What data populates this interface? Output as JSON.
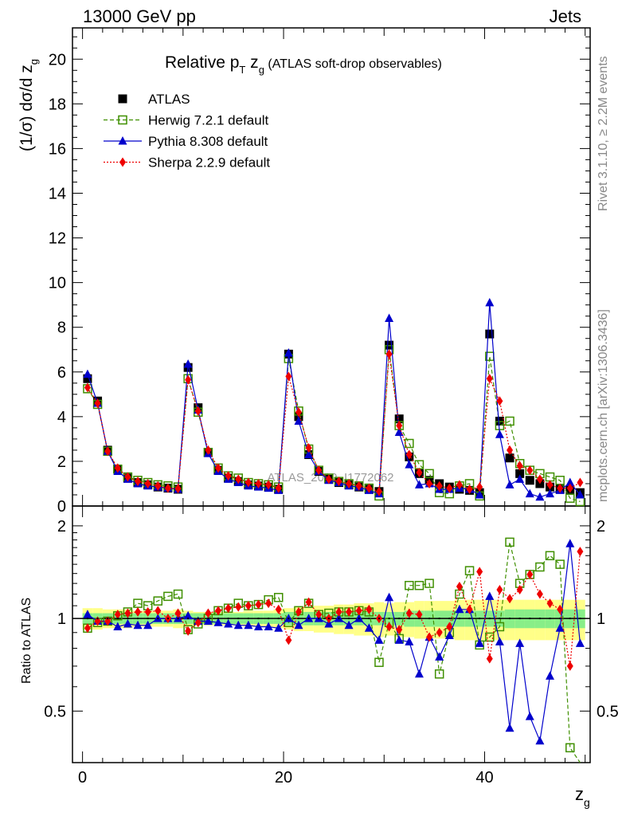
{
  "header": {
    "left": "13000 GeV pp",
    "right": "Jets"
  },
  "title": {
    "main": "Relative p",
    "sub_T": "T",
    "z": " z",
    "sub_g": "g",
    "tail": " (ATLAS soft-drop observables)"
  },
  "yaxis": {
    "main_prefix": "(1/σ) dσ/d z",
    "main_sub": "g",
    "ratio_label": "Ratio to ATLAS"
  },
  "xaxis": {
    "label": "z",
    "label_sub": "g"
  },
  "side_text": {
    "rivet": "Rivet 3.1.10, ≥ 2.2M events",
    "mcplots": "mcplots.cern.ch [arXiv:1306.3436]"
  },
  "watermark": "ATLAS_2019_I1772062",
  "legend": [
    {
      "label": "ATLAS",
      "color": "#000000",
      "marker": "square-filled"
    },
    {
      "label": "Herwig 7.2.1 default",
      "color": "#3f8f00",
      "marker": "square-open"
    },
    {
      "label": "Pythia 8.308 default",
      "color": "#0000cc",
      "marker": "triangle"
    },
    {
      "label": "Sherpa 2.2.9 default",
      "color": "#ee0000",
      "marker": "diamond"
    }
  ],
  "chart_data": {
    "type": "scatter",
    "x": [
      0.5,
      1.5,
      2.5,
      3.5,
      4.5,
      5.5,
      6.5,
      7.5,
      8.5,
      9.5,
      10.5,
      11.5,
      12.5,
      13.5,
      14.5,
      15.5,
      16.5,
      17.5,
      18.5,
      19.5,
      20.5,
      21.5,
      22.5,
      23.5,
      24.5,
      25.5,
      26.5,
      27.5,
      28.5,
      29.5,
      30.5,
      31.5,
      32.5,
      33.5,
      34.5,
      35.5,
      36.5,
      37.5,
      38.5,
      39.5,
      40.5,
      41.5,
      42.5,
      43.5,
      44.5,
      45.5,
      46.5,
      47.5,
      48.5,
      49.5
    ],
    "xlim": [
      -1,
      50.5
    ],
    "main_ylim": [
      0,
      21.4
    ],
    "main_yticks": [
      0,
      2,
      4,
      6,
      8,
      10,
      12,
      14,
      16,
      18,
      20
    ],
    "ratio_ylim": [
      0.34,
      2.32
    ],
    "ratio_yticks": [
      0.5,
      1,
      2
    ],
    "xticks": [
      0,
      20,
      40
    ],
    "series": [
      {
        "name": "ATLAS",
        "values": [
          5.7,
          4.7,
          2.5,
          1.65,
          1.25,
          1.05,
          0.95,
          0.85,
          0.8,
          0.75,
          6.2,
          4.4,
          2.4,
          1.6,
          1.25,
          1.1,
          0.95,
          0.9,
          0.85,
          0.75,
          6.8,
          4.0,
          2.3,
          1.55,
          1.2,
          1.05,
          0.95,
          0.85,
          0.75,
          0.65,
          7.2,
          3.9,
          2.2,
          1.45,
          1.15,
          1.0,
          0.85,
          0.75,
          0.7,
          0.6,
          7.7,
          3.8,
          2.15,
          1.45,
          1.15,
          1.0,
          0.85,
          0.75,
          0.7,
          0.6
        ]
      },
      {
        "name": "Herwig 7.2.1 default",
        "values": [
          5.25,
          4.55,
          2.45,
          1.65,
          1.3,
          1.15,
          1.05,
          0.95,
          0.9,
          0.85,
          5.7,
          4.2,
          2.4,
          1.7,
          1.35,
          1.25,
          1.05,
          1.0,
          0.95,
          0.85,
          6.6,
          4.25,
          2.55,
          1.6,
          1.25,
          1.1,
          1.0,
          0.9,
          0.8,
          0.45,
          7.0,
          3.6,
          2.8,
          1.85,
          1.45,
          0.6,
          0.55,
          0.9,
          1.0,
          0.45,
          6.7,
          3.6,
          3.8,
          1.9,
          1.6,
          1.45,
          1.3,
          1.15,
          0.35,
          0.2
        ]
      },
      {
        "name": "Pythia 8.308 default",
        "values": [
          5.9,
          4.6,
          2.45,
          1.55,
          1.2,
          1.0,
          0.9,
          0.85,
          0.8,
          0.75,
          6.35,
          4.3,
          2.35,
          1.55,
          1.2,
          1.05,
          0.9,
          0.85,
          0.8,
          0.7,
          6.85,
          3.8,
          2.3,
          1.55,
          1.15,
          1.05,
          0.9,
          0.85,
          0.7,
          0.55,
          8.4,
          3.3,
          1.85,
          0.95,
          1.0,
          0.75,
          0.75,
          0.8,
          0.75,
          0.5,
          9.1,
          3.2,
          0.95,
          1.2,
          0.55,
          0.4,
          0.55,
          0.7,
          1.05,
          0.5
        ]
      },
      {
        "name": "Sherpa 2.2.9 default",
        "values": [
          5.3,
          4.6,
          2.45,
          1.7,
          1.3,
          1.1,
          1.0,
          0.9,
          0.8,
          0.78,
          5.65,
          4.25,
          2.5,
          1.7,
          1.35,
          1.2,
          1.05,
          1.0,
          0.95,
          0.8,
          5.8,
          4.2,
          2.6,
          1.6,
          1.2,
          1.1,
          1.0,
          0.9,
          0.8,
          0.65,
          6.8,
          3.6,
          2.3,
          1.5,
          1.0,
          0.9,
          0.8,
          0.95,
          0.75,
          0.85,
          5.7,
          4.7,
          2.5,
          1.8,
          1.6,
          1.2,
          0.95,
          0.8,
          0.8,
          1.05
        ]
      }
    ],
    "ratios": [
      {
        "name": "Herwig 7.2.1 default",
        "values": [
          0.93,
          0.97,
          0.98,
          1.02,
          1.05,
          1.12,
          1.1,
          1.14,
          1.18,
          1.2,
          0.92,
          0.96,
          1.0,
          1.06,
          1.08,
          1.12,
          1.1,
          1.11,
          1.15,
          1.17,
          0.97,
          1.06,
          1.12,
          1.03,
          1.04,
          1.05,
          1.05,
          1.06,
          1.05,
          0.72,
          0.97,
          0.86,
          1.28,
          1.28,
          1.3,
          0.66,
          0.9,
          1.2,
          1.43,
          0.82,
          0.87,
          0.94,
          1.77,
          1.3,
          1.39,
          1.47,
          1.6,
          1.5,
          0.38,
          0.33
        ]
      },
      {
        "name": "Pythia 8.308 default",
        "values": [
          1.03,
          0.98,
          0.98,
          0.94,
          0.96,
          0.95,
          0.95,
          1.0,
          1.0,
          1.0,
          1.02,
          0.98,
          0.98,
          0.97,
          0.96,
          0.95,
          0.95,
          0.94,
          0.94,
          0.93,
          1.0,
          0.95,
          1.0,
          1.0,
          0.96,
          1.0,
          0.95,
          1.0,
          0.93,
          0.85,
          1.17,
          0.85,
          0.84,
          0.66,
          0.87,
          0.75,
          0.88,
          1.07,
          1.07,
          0.83,
          1.18,
          0.84,
          0.44,
          0.83,
          0.48,
          0.4,
          0.65,
          0.93,
          1.75,
          0.83
        ]
      },
      {
        "name": "Sherpa 2.2.9 default",
        "values": [
          0.93,
          0.98,
          0.98,
          1.03,
          1.04,
          1.05,
          1.05,
          1.06,
          1.0,
          1.04,
          0.91,
          0.97,
          1.04,
          1.06,
          1.08,
          1.09,
          1.1,
          1.11,
          1.12,
          1.07,
          0.85,
          1.05,
          1.13,
          1.03,
          1.0,
          1.05,
          1.05,
          1.06,
          1.07,
          1.0,
          0.94,
          0.92,
          1.04,
          1.03,
          0.87,
          0.9,
          0.94,
          1.27,
          1.07,
          1.42,
          0.74,
          1.24,
          1.16,
          1.24,
          1.39,
          1.2,
          1.12,
          1.07,
          0.7,
          1.65
        ]
      }
    ],
    "band_inner": [
      0.04,
      0.04,
      0.04,
      0.04,
      0.04,
      0.04,
      0.04,
      0.04,
      0.04,
      0.04,
      0.04,
      0.04,
      0.04,
      0.04,
      0.04,
      0.04,
      0.04,
      0.04,
      0.04,
      0.04,
      0.05,
      0.05,
      0.05,
      0.05,
      0.05,
      0.05,
      0.05,
      0.05,
      0.05,
      0.05,
      0.05,
      0.05,
      0.06,
      0.06,
      0.06,
      0.06,
      0.06,
      0.06,
      0.06,
      0.06,
      0.06,
      0.06,
      0.07,
      0.07,
      0.07,
      0.07,
      0.07,
      0.07,
      0.07,
      0.07
    ],
    "band_outer": [
      0.08,
      0.08,
      0.07,
      0.07,
      0.07,
      0.06,
      0.06,
      0.06,
      0.06,
      0.07,
      0.06,
      0.05,
      0.05,
      0.05,
      0.05,
      0.05,
      0.06,
      0.06,
      0.06,
      0.07,
      0.08,
      0.09,
      0.09,
      0.1,
      0.1,
      0.11,
      0.11,
      0.12,
      0.12,
      0.13,
      0.12,
      0.13,
      0.13,
      0.14,
      0.14,
      0.14,
      0.14,
      0.15,
      0.15,
      0.15,
      0.15,
      0.15,
      0.15,
      0.15,
      0.15,
      0.15,
      0.15,
      0.15,
      0.15,
      0.15
    ]
  }
}
